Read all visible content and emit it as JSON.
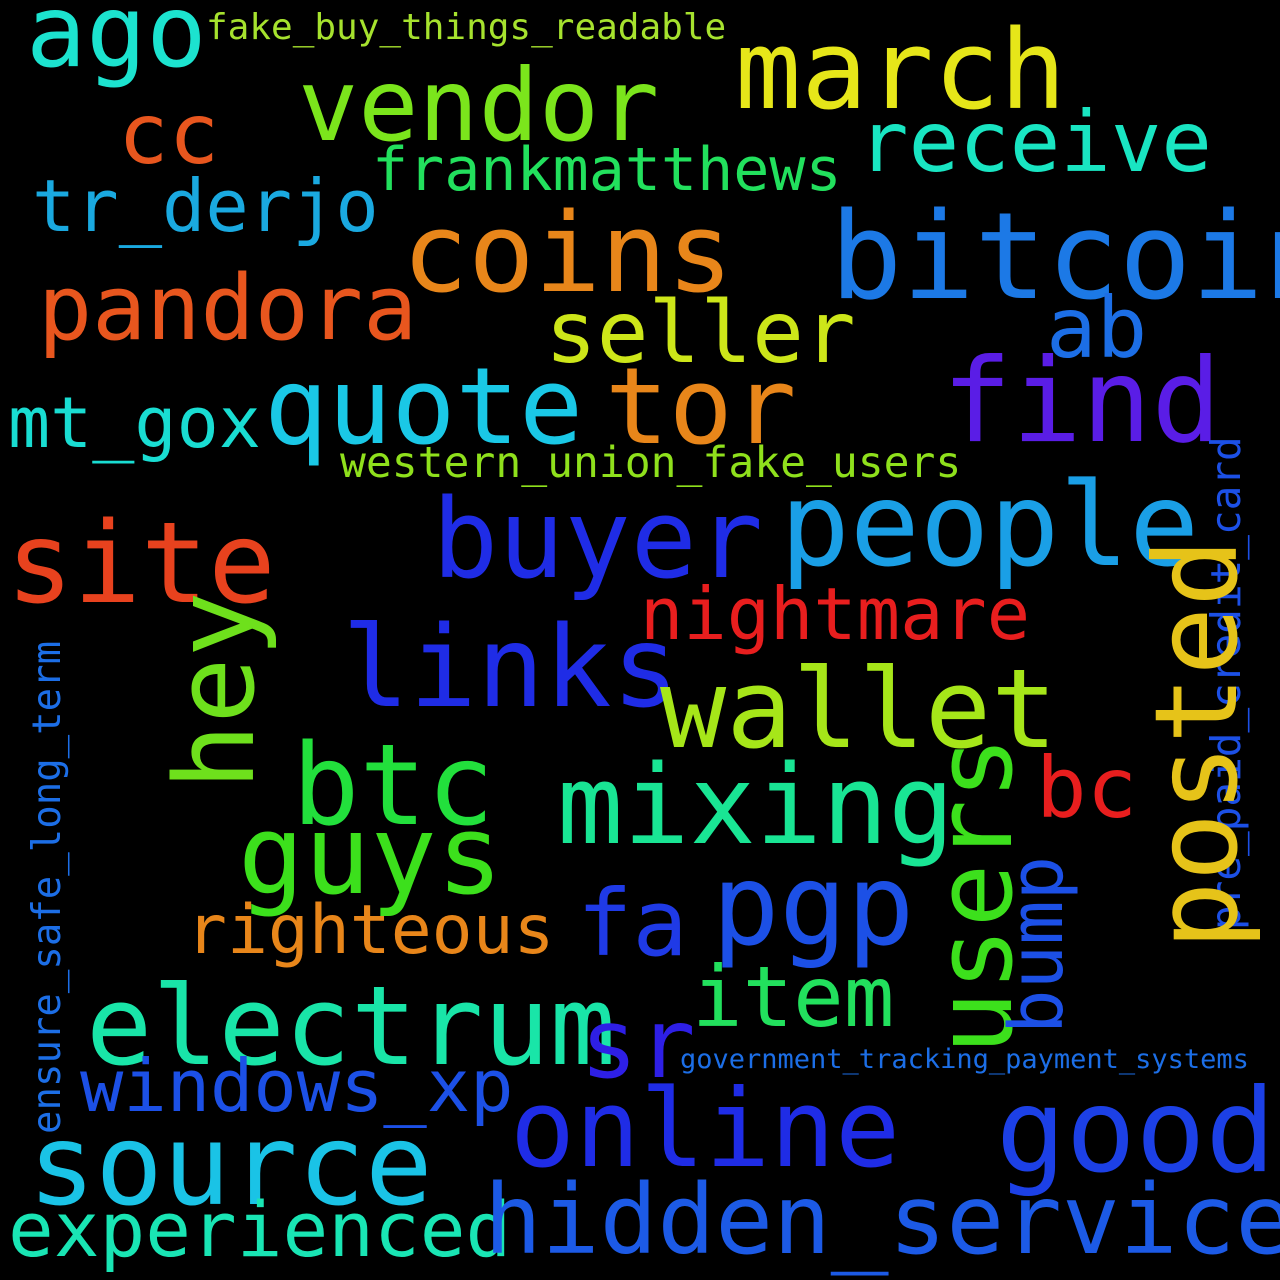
{
  "words": [
    {
      "text": "ago",
      "color": "#1ce3cf"
    },
    {
      "text": "fake_buy_things_readable",
      "color": "#a6e22e"
    },
    {
      "text": "vendor",
      "color": "#7be51c"
    },
    {
      "text": "march",
      "color": "#e6e619"
    },
    {
      "text": "cc",
      "color": "#e8561e"
    },
    {
      "text": "receive",
      "color": "#19e5c2"
    },
    {
      "text": "frankmatthews",
      "color": "#22e05d"
    },
    {
      "text": "tr_derjo",
      "color": "#1aa9e0"
    },
    {
      "text": "coins",
      "color": "#e8861a"
    },
    {
      "text": "bitcoin",
      "color": "#1c79e6"
    },
    {
      "text": "pandora",
      "color": "#e8561e"
    },
    {
      "text": "seller",
      "color": "#cde619"
    },
    {
      "text": "ab",
      "color": "#1c6ee6"
    },
    {
      "text": "mt_gox",
      "color": "#19ddd2"
    },
    {
      "text": "quote",
      "color": "#1ac8e6"
    },
    {
      "text": "tor",
      "color": "#e8861a"
    },
    {
      "text": "find",
      "color": "#5a1de6"
    },
    {
      "text": "western_union_fake_users",
      "color": "#8fe01c"
    },
    {
      "text": "pre_paid_credit_card",
      "color": "#1c50e6"
    },
    {
      "text": "site",
      "color": "#e8421e"
    },
    {
      "text": "buyer",
      "color": "#1f2ce6"
    },
    {
      "text": "people",
      "color": "#1a9fe6"
    },
    {
      "text": "nightmare",
      "color": "#e81e1e"
    },
    {
      "text": "posted",
      "color": "#e6c319"
    },
    {
      "text": "hey",
      "color": "#6ee01c"
    },
    {
      "text": "links",
      "color": "#1f2ce6"
    },
    {
      "text": "wallet",
      "color": "#a6e619"
    },
    {
      "text": "ensure_safe_long_term",
      "color": "#1c6ee6"
    },
    {
      "text": "btc",
      "color": "#22e03c"
    },
    {
      "text": "mixing",
      "color": "#19e594"
    },
    {
      "text": "users",
      "color": "#3ce01c"
    },
    {
      "text": "bc",
      "color": "#e81e1e"
    },
    {
      "text": "guys",
      "color": "#3ce01c"
    },
    {
      "text": "bump",
      "color": "#1c50e6"
    },
    {
      "text": "pgp",
      "color": "#1c50e6"
    },
    {
      "text": "righteous",
      "color": "#e8861a"
    },
    {
      "text": "fa",
      "color": "#1f3ae6"
    },
    {
      "text": "item",
      "color": "#22e05d"
    },
    {
      "text": "electrum",
      "color": "#19e5a8"
    },
    {
      "text": "sr",
      "color": "#2e1fe6"
    },
    {
      "text": "government_tracking_payment_systems",
      "color": "#1c6ee6"
    },
    {
      "text": "windows_xp",
      "color": "#1c50e6"
    },
    {
      "text": "online",
      "color": "#1f2ce6"
    },
    {
      "text": "good",
      "color": "#1c40e6"
    },
    {
      "text": "source",
      "color": "#1ac3e6"
    },
    {
      "text": "experienced",
      "color": "#19e5b4"
    },
    {
      "text": "hidden_services",
      "color": "#1c5ae6"
    }
  ]
}
